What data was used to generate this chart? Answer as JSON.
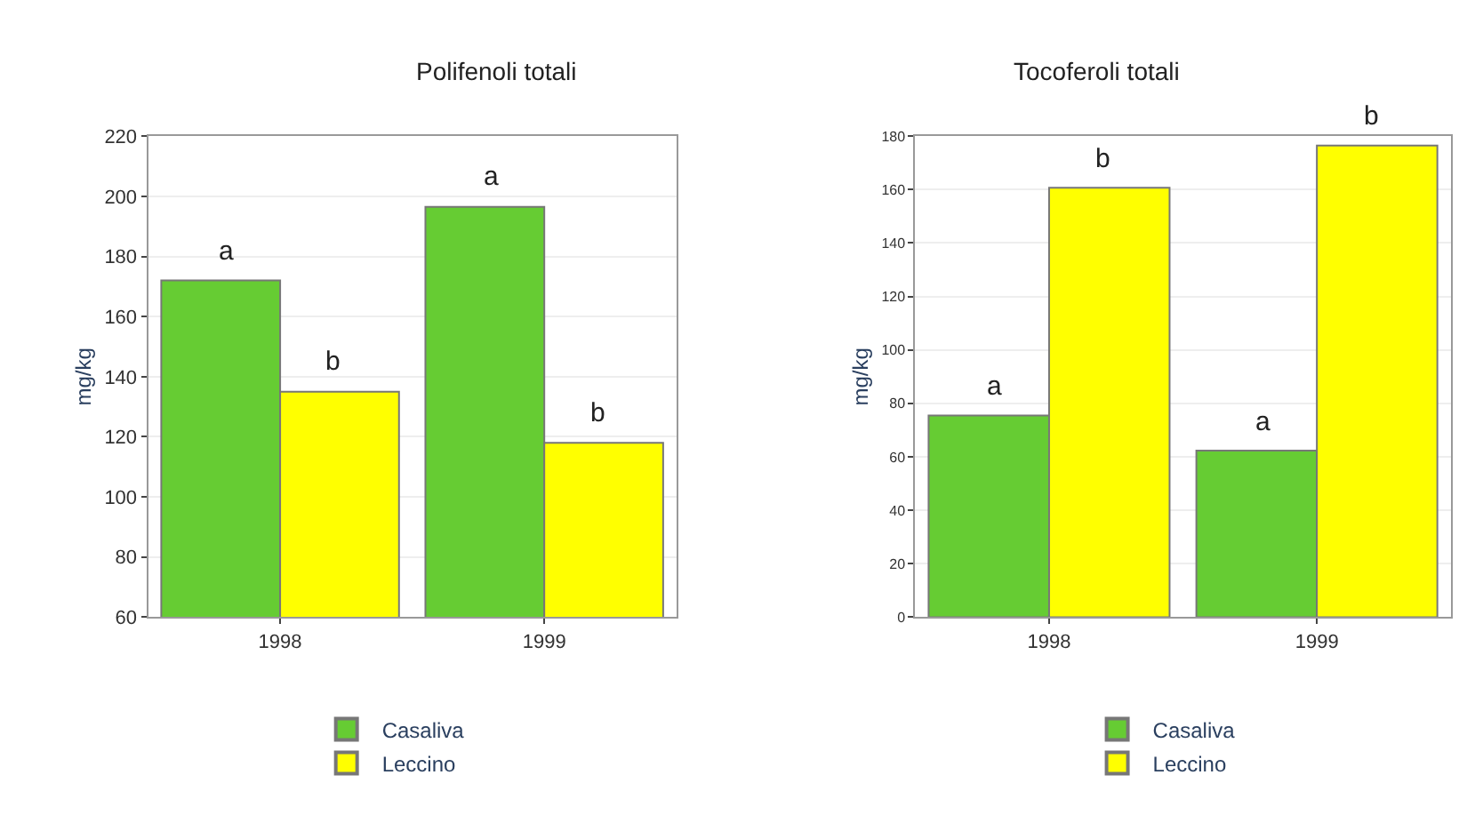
{
  "chart_data": [
    {
      "type": "bar",
      "title": "Polifenoli totali",
      "ylabel": "mg/kg",
      "categories": [
        "1998",
        "1999"
      ],
      "series": [
        {
          "name": "Casaliva",
          "color": "#66cc33",
          "values": [
            172,
            196.5
          ]
        },
        {
          "name": "Leccino",
          "color": "#ffff00",
          "values": [
            135,
            118
          ]
        }
      ],
      "ylim": [
        60,
        220
      ],
      "yticks": [
        60,
        80,
        100,
        120,
        140,
        160,
        180,
        200,
        220
      ],
      "grid": "y",
      "legend": "bottom",
      "annotations": [
        {
          "text": "a",
          "x": "1998",
          "y": 172
        },
        {
          "text": "b",
          "x": "1998",
          "y": 135
        },
        {
          "text": "a",
          "x": "1999",
          "y": 196.5
        },
        {
          "text": "b",
          "x": "1999",
          "y": 118
        }
      ]
    },
    {
      "type": "bar",
      "title": "Tocoferoli totali",
      "ylabel": "mg/kg",
      "categories": [
        "1998",
        "1999"
      ],
      "series": [
        {
          "name": "Casaliva",
          "color": "#66cc33",
          "values": [
            75.5,
            62.3
          ]
        },
        {
          "name": "Leccino",
          "color": "#ffff00",
          "values": [
            160.7,
            176.5
          ]
        }
      ],
      "ylim": [
        0,
        180
      ],
      "yticks": [
        0,
        20,
        40,
        60,
        80,
        100,
        120,
        140,
        160,
        180
      ],
      "grid": "y",
      "legend": "bottom",
      "annotations": [
        {
          "text": "a",
          "x": "1998",
          "y": 75.5
        },
        {
          "text": "b",
          "x": "1998",
          "y": 160.7
        },
        {
          "text": "a",
          "x": "1999",
          "y": 62.3
        },
        {
          "text": "b",
          "x": "1999",
          "y": 176.5
        }
      ]
    }
  ]
}
